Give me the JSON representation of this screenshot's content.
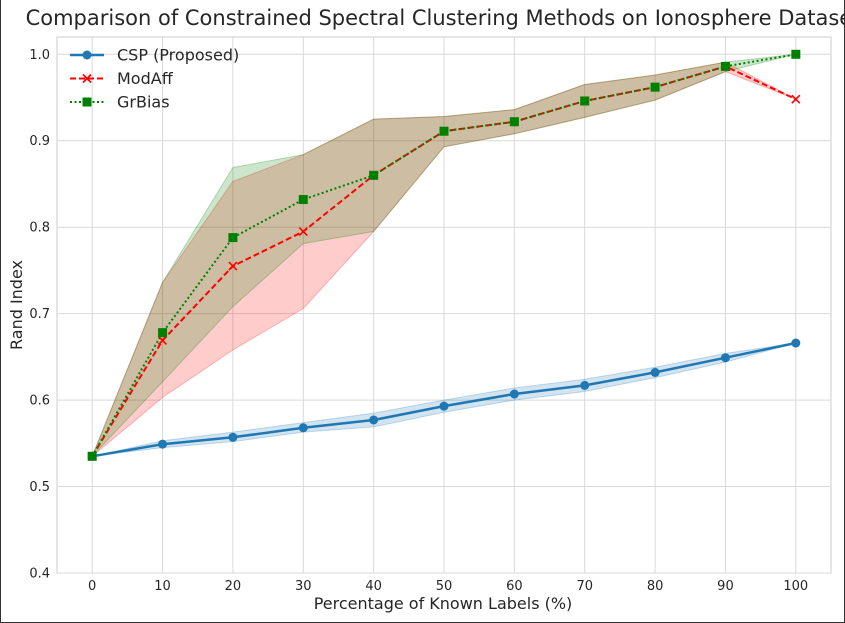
{
  "chart_data": {
    "type": "line",
    "title": "Comparison of Constrained Spectral Clustering Methods on Ionosphere Dataset",
    "xlabel": "Percentage of Known Labels (%)",
    "ylabel": "Rand Index",
    "xlim": [
      -5,
      105
    ],
    "ylim": [
      0.4,
      1.02
    ],
    "x": [
      0,
      10,
      20,
      30,
      40,
      50,
      60,
      70,
      80,
      90,
      100
    ],
    "xticks": [
      0,
      10,
      20,
      30,
      40,
      50,
      60,
      70,
      80,
      90,
      100
    ],
    "yticks": [
      0.4,
      0.5,
      0.6,
      0.7,
      0.8,
      0.9,
      1.0
    ],
    "xtick_labels": [
      "0",
      "10",
      "20",
      "30",
      "40",
      "50",
      "60",
      "70",
      "80",
      "90",
      "100"
    ],
    "ytick_labels": [
      "0.4",
      "0.5",
      "0.6",
      "0.7",
      "0.8",
      "0.9",
      "1.0"
    ],
    "grid": true,
    "legend_position": "top-left",
    "series": [
      {
        "name": "CSP (Proposed)",
        "color": "#1f77b4",
        "marker": "circle",
        "line_style": "solid",
        "values": [
          0.535,
          0.549,
          0.557,
          0.568,
          0.577,
          0.593,
          0.607,
          0.617,
          0.632,
          0.649,
          0.666
        ],
        "lower": [
          0.535,
          0.545,
          0.552,
          0.563,
          0.569,
          0.586,
          0.6,
          0.61,
          0.626,
          0.644,
          0.666
        ],
        "upper": [
          0.535,
          0.553,
          0.563,
          0.574,
          0.585,
          0.6,
          0.614,
          0.624,
          0.638,
          0.654,
          0.666
        ]
      },
      {
        "name": "ModAff",
        "color": "#ff0000",
        "marker": "x",
        "line_style": "dashed",
        "values": [
          0.535,
          0.669,
          0.755,
          0.795,
          0.86,
          0.911,
          0.922,
          0.946,
          0.962,
          0.986,
          0.948
        ],
        "lower": [
          0.535,
          0.603,
          0.658,
          0.706,
          0.795,
          0.893,
          0.908,
          0.927,
          0.947,
          0.98,
          0.948
        ],
        "upper": [
          0.535,
          0.736,
          0.853,
          0.884,
          0.925,
          0.928,
          0.936,
          0.965,
          0.976,
          0.991,
          0.948
        ]
      },
      {
        "name": "GrBias",
        "color": "#008000",
        "marker": "square",
        "line_style": "dotted",
        "values": [
          0.535,
          0.678,
          0.788,
          0.832,
          0.86,
          0.911,
          0.922,
          0.946,
          0.962,
          0.986,
          1.0
        ],
        "lower": [
          0.535,
          0.621,
          0.708,
          0.781,
          0.795,
          0.893,
          0.908,
          0.927,
          0.947,
          0.98,
          1.0
        ],
        "upper": [
          0.535,
          0.736,
          0.869,
          0.884,
          0.925,
          0.928,
          0.936,
          0.965,
          0.976,
          0.991,
          1.0
        ]
      }
    ]
  }
}
